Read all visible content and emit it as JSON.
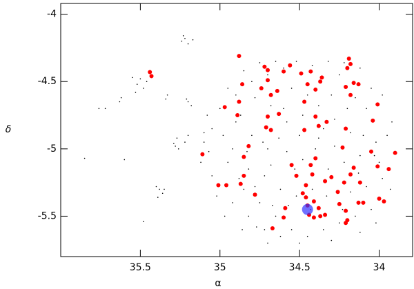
{
  "chart_data": {
    "type": "scatter",
    "x_label": "α",
    "y_label": "δ",
    "xlim": [
      36,
      33.79
    ],
    "ylim": [
      -5.8,
      -3.92
    ],
    "xticks": [
      35.5,
      35,
      34.5,
      34
    ],
    "yticks": [
      -4,
      -4.5,
      -5,
      -5.5
    ],
    "series": [
      {
        "color": "#000000",
        "size": 0.8,
        "x": [
          34.9,
          34.8,
          34.7,
          34.6,
          34.5,
          34.4,
          34.3,
          34.2,
          34.1,
          34.0,
          34.95,
          34.85,
          34.75,
          34.65,
          34.55,
          34.45,
          34.35,
          34.25,
          34.15,
          34.05,
          33.95,
          33.92,
          34.98,
          35.05,
          35.1,
          35.12,
          35.05,
          34.92,
          34.82,
          34.72,
          34.62,
          34.52,
          34.42,
          34.32,
          34.22,
          34.12,
          34.6,
          34.7,
          34.8,
          34.9,
          35.0,
          35.08,
          34.78,
          34.68,
          34.58,
          34.48,
          34.38,
          34.28,
          34.18,
          34.08,
          33.98,
          34.02,
          34.12,
          34.22,
          34.32,
          34.42,
          34.52,
          34.62,
          34.72,
          34.82,
          34.92,
          34.88,
          34.78,
          34.68,
          34.58,
          34.48,
          34.38,
          34.28,
          34.18,
          34.08,
          33.98,
          33.93,
          34.02,
          34.12,
          34.3,
          34.5,
          34.7,
          34.86,
          34.97,
          35.02,
          35.07,
          35.1,
          34.95,
          34.85,
          34.75,
          34.65,
          34.55,
          34.45,
          34.35,
          34.25,
          34.15,
          34.05,
          34.63,
          34.73,
          34.83,
          34.53,
          34.43,
          34.33,
          34.23,
          34.13,
          34.03,
          34.57,
          34.67,
          34.77,
          34.87,
          35.22,
          35.24,
          35.2,
          35.23,
          35.17,
          35.5,
          35.52,
          35.48,
          35.53,
          35.46,
          35.55,
          35.33,
          35.34,
          35.2,
          35.18,
          35.21,
          35.27,
          35.29,
          35.26,
          35.28,
          35.38,
          35.36,
          35.4,
          35.39,
          35.35,
          35.62,
          35.63,
          35.72,
          35.76,
          35.48,
          35.6,
          35.85,
          35.22,
          35.2
        ],
        "values": [
          -4.8,
          -4.9,
          -5.0,
          -4.7,
          -4.9,
          -5.0,
          -4.6,
          -4.7,
          -4.9,
          -5.1,
          -5.1,
          -5.3,
          -5.4,
          -5.5,
          -5.6,
          -5.65,
          -5.6,
          -5.55,
          -5.5,
          -5.45,
          -4.9,
          -4.8,
          -4.9,
          -4.85,
          -4.95,
          -5.1,
          -5.2,
          -5.4,
          -5.5,
          -5.6,
          -5.65,
          -4.35,
          -4.38,
          -4.35,
          -4.36,
          -4.4,
          -4.4,
          -4.45,
          -4.5,
          -4.6,
          -4.7,
          -4.75,
          -4.62,
          -4.68,
          -4.8,
          -4.75,
          -4.68,
          -4.78,
          -4.88,
          -4.7,
          -4.6,
          -4.95,
          -5.05,
          -5.1,
          -5.15,
          -5.3,
          -5.35,
          -5.3,
          -5.2,
          -5.15,
          -5.0,
          -5.22,
          -5.28,
          -5.12,
          -5.02,
          -5.08,
          -4.92,
          -4.98,
          -5.32,
          -5.28,
          -5.22,
          -5.3,
          -5.55,
          -5.62,
          -5.68,
          -5.7,
          -5.7,
          -5.6,
          -5.5,
          -5.35,
          -5.02,
          -4.88,
          -4.55,
          -4.42,
          -4.36,
          -4.35,
          -4.55,
          -4.6,
          -4.85,
          -4.45,
          -4.62,
          -4.55,
          -4.92,
          -4.95,
          -5.02,
          -5.15,
          -5.45,
          -5.35,
          -5.45,
          -5.18,
          -5.05,
          -5.42,
          -5.42,
          -5.58,
          -4.75,
          -4.18,
          -4.2,
          -4.22,
          -4.16,
          -4.19,
          -4.48,
          -4.52,
          -4.55,
          -4.58,
          -4.5,
          -4.47,
          -4.6,
          -4.63,
          -4.65,
          -4.68,
          -4.63,
          -4.92,
          -4.96,
          -5.0,
          -4.98,
          -5.3,
          -5.33,
          -5.28,
          -5.36,
          -5.3,
          -4.62,
          -4.65,
          -4.7,
          -4.7,
          -5.54,
          -5.08,
          -5.07,
          -4.95,
          -4.9
        ]
      },
      {
        "color": "#ff0000",
        "size": 3,
        "x": [
          35.44,
          35.43,
          34.88,
          34.72,
          34.7,
          34.6,
          34.56,
          34.49,
          34.43,
          34.45,
          34.4,
          34.37,
          34.36,
          34.7,
          34.74,
          34.68,
          34.64,
          34.86,
          34.88,
          34.97,
          34.89,
          34.7,
          34.47,
          34.4,
          34.38,
          34.33,
          34.63,
          34.47,
          34.71,
          34.68,
          34.19,
          34.18,
          34.2,
          34.21,
          34.16,
          34.18,
          34.13,
          34.01,
          34.04,
          34.21,
          34.23,
          34.05,
          33.9,
          33.94,
          34.01,
          34.16,
          34.12,
          34.18,
          34.22,
          34.26,
          34.34,
          34.4,
          34.43,
          34.42,
          34.55,
          34.52,
          34.82,
          34.85,
          34.85,
          34.96,
          34.87,
          35.01,
          35.11,
          34.46,
          34.46,
          34.45,
          34.48,
          34.25,
          34.21,
          34.2,
          34.21,
          34.34,
          34.37,
          34.41,
          34.44,
          34.6,
          34.59,
          34.78,
          34.0,
          33.97,
          34.1,
          34.13,
          34.38,
          34.41,
          34.3,
          34.67
        ],
        "values": [
          -4.43,
          -4.46,
          -4.31,
          -4.39,
          -4.415,
          -4.425,
          -4.38,
          -4.44,
          -4.425,
          -4.52,
          -4.56,
          -4.5,
          -4.47,
          -4.49,
          -4.55,
          -4.6,
          -4.57,
          -4.52,
          -4.65,
          -4.69,
          -4.75,
          -4.76,
          -4.65,
          -4.76,
          -4.83,
          -4.8,
          -4.74,
          -4.86,
          -4.84,
          -4.86,
          -4.33,
          -4.37,
          -4.4,
          -4.54,
          -4.51,
          -4.6,
          -4.52,
          -4.67,
          -4.79,
          -4.85,
          -4.99,
          -5.02,
          -5.03,
          -5.15,
          -5.13,
          -5.14,
          -5.25,
          -5.19,
          -5.25,
          -5.32,
          -5.24,
          -5.07,
          -5.12,
          -5.19,
          -5.12,
          -5.2,
          -4.98,
          -5.06,
          -5.2,
          -5.27,
          -5.26,
          -5.27,
          -5.04,
          -5.27,
          -5.36,
          -5.42,
          -5.33,
          -5.41,
          -5.46,
          -5.53,
          -5.55,
          -5.49,
          -5.5,
          -5.51,
          -5.49,
          -5.51,
          -5.44,
          -5.34,
          -5.37,
          -5.39,
          -5.4,
          -5.4,
          -5.44,
          -5.39,
          -5.21,
          -5.59
        ]
      },
      {
        "color": "#3333ff",
        "size": 8,
        "x": [
          34.45
        ],
        "values": [
          -5.45
        ]
      }
    ]
  }
}
